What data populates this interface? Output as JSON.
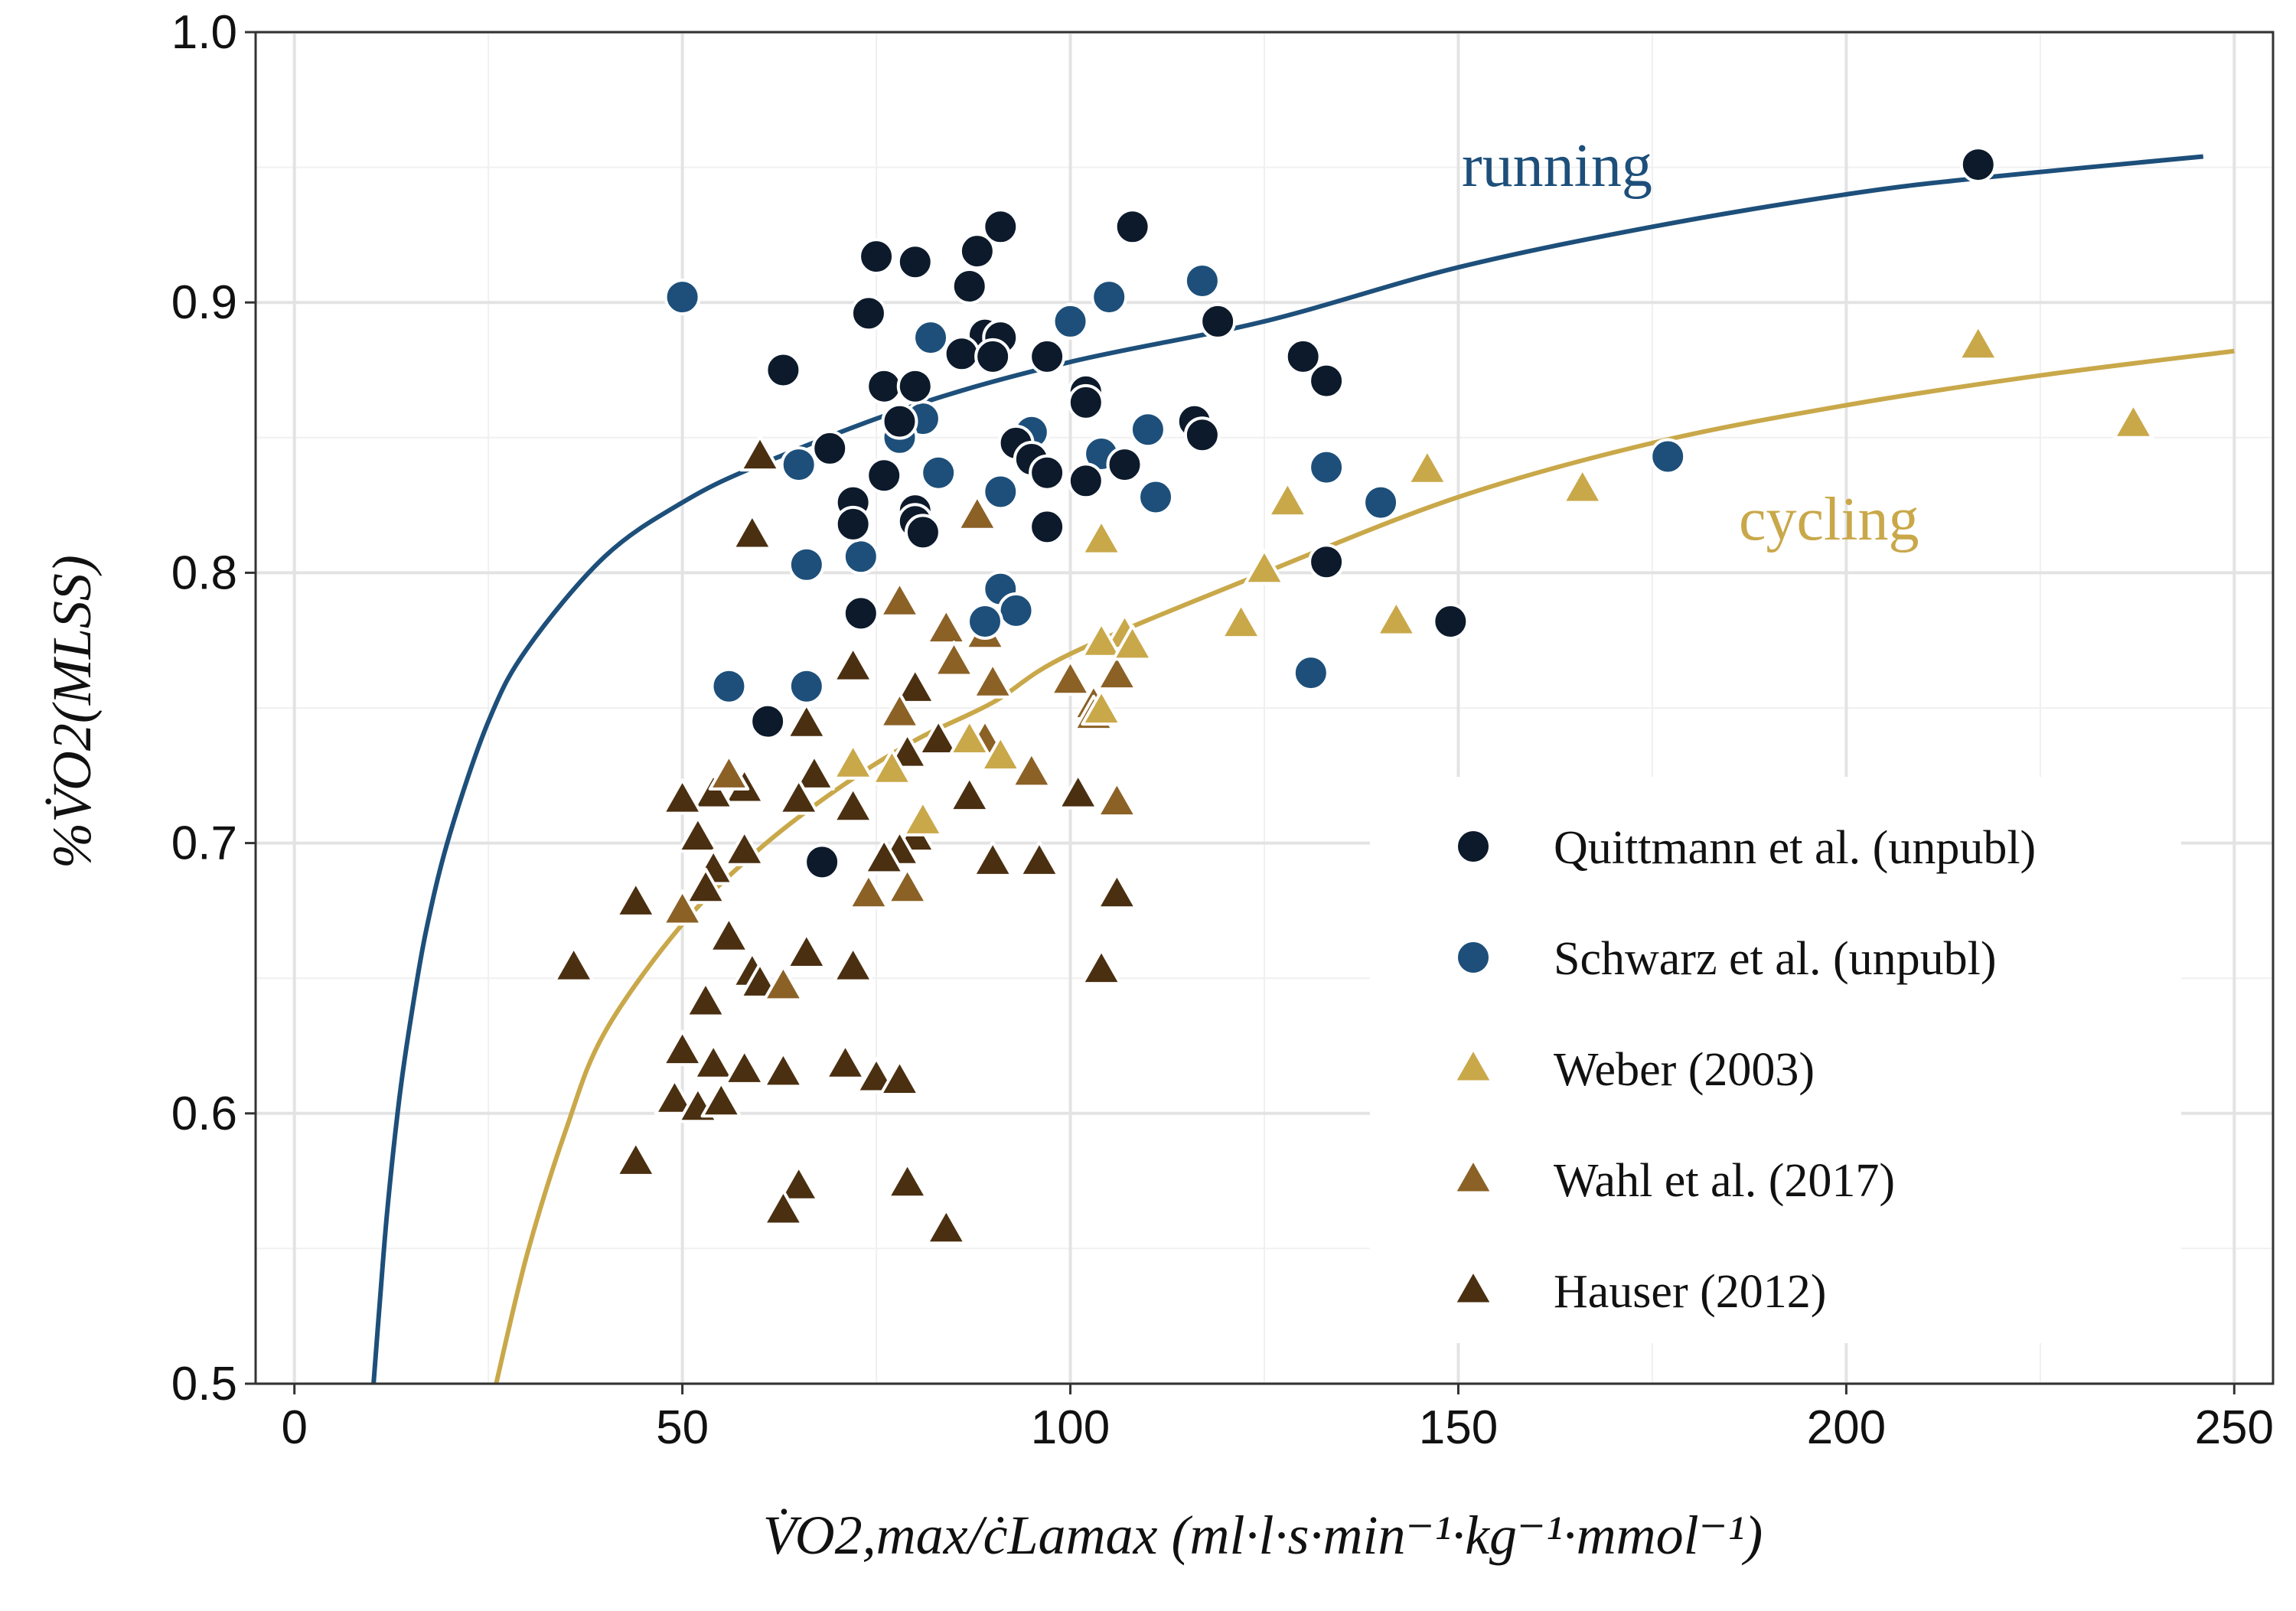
{
  "chart_data": {
    "type": "scatter",
    "title": "",
    "xlabel": "V̇O2,max/ċLamax (ml·l·s·min⁻¹·kg⁻¹·mmol⁻¹)",
    "ylabel": "%V̇O2(MLSS)",
    "xlim": [
      -5,
      255
    ],
    "ylim": [
      0.5,
      1.0
    ],
    "x_ticks": [
      0,
      50,
      100,
      150,
      200,
      250
    ],
    "y_ticks": [
      0.5,
      0.6,
      0.7,
      0.8,
      0.9,
      1.0
    ],
    "x_tick_labels": [
      "0",
      "50",
      "100",
      "150",
      "200",
      "250"
    ],
    "y_tick_labels": [
      "0.5",
      "0.6",
      "0.7",
      "0.8",
      "0.9",
      "1.0"
    ],
    "grid": true,
    "legend_position": "bottom-right",
    "series": [
      {
        "name": "Quittmann et al. (unpubl)",
        "marker": "circle",
        "color": "#0c1a2b",
        "points": [
          [
            217,
            0.951
          ],
          [
            91,
            0.928
          ],
          [
            108,
            0.928
          ],
          [
            75,
            0.917
          ],
          [
            80,
            0.915
          ],
          [
            88,
            0.919
          ],
          [
            74,
            0.896
          ],
          [
            87,
            0.906
          ],
          [
            119,
            0.893
          ],
          [
            63,
            0.875
          ],
          [
            89,
            0.888
          ],
          [
            91,
            0.887
          ],
          [
            86,
            0.881
          ],
          [
            90,
            0.88
          ],
          [
            97,
            0.88
          ],
          [
            130,
            0.88
          ],
          [
            133,
            0.871
          ],
          [
            76,
            0.869
          ],
          [
            80,
            0.869
          ],
          [
            102,
            0.867
          ],
          [
            102,
            0.863
          ],
          [
            78,
            0.856
          ],
          [
            116,
            0.856
          ],
          [
            117,
            0.851
          ],
          [
            69,
            0.846
          ],
          [
            93,
            0.848
          ],
          [
            95,
            0.842
          ],
          [
            97,
            0.837
          ],
          [
            102,
            0.834
          ],
          [
            107,
            0.84
          ],
          [
            76,
            0.836
          ],
          [
            72,
            0.826
          ],
          [
            80,
            0.823
          ],
          [
            80,
            0.819
          ],
          [
            72,
            0.818
          ],
          [
            81,
            0.815
          ],
          [
            97,
            0.817
          ],
          [
            133,
            0.804
          ],
          [
            73,
            0.785
          ],
          [
            149,
            0.782
          ],
          [
            61,
            0.745
          ],
          [
            68,
            0.693
          ]
        ]
      },
      {
        "name": "Schwarz et al. (unpubl)",
        "marker": "circle",
        "color": "#1d4f7a",
        "points": [
          [
            50,
            0.902
          ],
          [
            105,
            0.902
          ],
          [
            117,
            0.908
          ],
          [
            100,
            0.893
          ],
          [
            82,
            0.887
          ],
          [
            81,
            0.857
          ],
          [
            78,
            0.85
          ],
          [
            95,
            0.852
          ],
          [
            110,
            0.853
          ],
          [
            104,
            0.844
          ],
          [
            65,
            0.84
          ],
          [
            83,
            0.837
          ],
          [
            133,
            0.839
          ],
          [
            91,
            0.83
          ],
          [
            111,
            0.828
          ],
          [
            140,
            0.826
          ],
          [
            73,
            0.806
          ],
          [
            66,
            0.803
          ],
          [
            91,
            0.794
          ],
          [
            93,
            0.786
          ],
          [
            89,
            0.782
          ],
          [
            177,
            0.843
          ],
          [
            131,
            0.763
          ],
          [
            56,
            0.758
          ],
          [
            66,
            0.758
          ]
        ]
      },
      {
        "name": "Weber (2003)",
        "marker": "triangle",
        "color": "#c9a84a",
        "points": [
          [
            217,
            0.884
          ],
          [
            237,
            0.855
          ],
          [
            146,
            0.838
          ],
          [
            166,
            0.831
          ],
          [
            128,
            0.826
          ],
          [
            125,
            0.801
          ],
          [
            104,
            0.812
          ],
          [
            122,
            0.781
          ],
          [
            142,
            0.782
          ],
          [
            107,
            0.777
          ],
          [
            104,
            0.774
          ],
          [
            108,
            0.773
          ],
          [
            104,
            0.749
          ],
          [
            87,
            0.738
          ],
          [
            91,
            0.732
          ],
          [
            72,
            0.729
          ],
          [
            81,
            0.708
          ],
          [
            77,
            0.727
          ]
        ]
      },
      {
        "name": "Wahl et al. (2017)",
        "marker": "triangle",
        "color": "#8b6126",
        "points": [
          [
            88,
            0.821
          ],
          [
            78,
            0.789
          ],
          [
            84,
            0.779
          ],
          [
            89,
            0.777
          ],
          [
            85,
            0.767
          ],
          [
            90,
            0.759
          ],
          [
            100,
            0.76
          ],
          [
            106,
            0.762
          ],
          [
            103,
            0.751
          ],
          [
            103,
            0.747
          ],
          [
            78,
            0.748
          ],
          [
            89,
            0.738
          ],
          [
            95,
            0.726
          ],
          [
            106,
            0.715
          ],
          [
            56,
            0.725
          ],
          [
            50,
            0.675
          ],
          [
            79,
            0.683
          ],
          [
            63,
            0.647
          ],
          [
            74,
            0.681
          ]
        ]
      },
      {
        "name": "Hauser (2012)",
        "marker": "triangle",
        "color": "#4a2f10",
        "points": [
          [
            60,
            0.843
          ],
          [
            59,
            0.814
          ],
          [
            72,
            0.765
          ],
          [
            80,
            0.757
          ],
          [
            66,
            0.744
          ],
          [
            83,
            0.738
          ],
          [
            79,
            0.733
          ],
          [
            87,
            0.717
          ],
          [
            101,
            0.718
          ],
          [
            67,
            0.725
          ],
          [
            58,
            0.72
          ],
          [
            54,
            0.718
          ],
          [
            50,
            0.716
          ],
          [
            65,
            0.716
          ],
          [
            72,
            0.713
          ],
          [
            52,
            0.702
          ],
          [
            58,
            0.697
          ],
          [
            80,
            0.702
          ],
          [
            78,
            0.697
          ],
          [
            76,
            0.694
          ],
          [
            90,
            0.693
          ],
          [
            96,
            0.693
          ],
          [
            54,
            0.69
          ],
          [
            53,
            0.683
          ],
          [
            106,
            0.681
          ],
          [
            44,
            0.678
          ],
          [
            56,
            0.665
          ],
          [
            66,
            0.659
          ],
          [
            59,
            0.652
          ],
          [
            60,
            0.648
          ],
          [
            72,
            0.654
          ],
          [
            104,
            0.653
          ],
          [
            36,
            0.654
          ],
          [
            53,
            0.641
          ],
          [
            50,
            0.623
          ],
          [
            54,
            0.618
          ],
          [
            58,
            0.616
          ],
          [
            63,
            0.615
          ],
          [
            71,
            0.618
          ],
          [
            75,
            0.613
          ],
          [
            78,
            0.612
          ],
          [
            49,
            0.605
          ],
          [
            52,
            0.602
          ],
          [
            55,
            0.604
          ],
          [
            44,
            0.582
          ],
          [
            65,
            0.573
          ],
          [
            79,
            0.574
          ],
          [
            63,
            0.564
          ],
          [
            84,
            0.557
          ]
        ]
      }
    ],
    "curves": [
      {
        "label": "running",
        "color": "#1d4f7a",
        "x_range": [
          10.2,
          246
        ],
        "points": [
          [
            10.2,
            0.5
          ],
          [
            11,
            0.53
          ],
          [
            12,
            0.565
          ],
          [
            13.5,
            0.605
          ],
          [
            15,
            0.635
          ],
          [
            17,
            0.668
          ],
          [
            20,
            0.703
          ],
          [
            25,
            0.745
          ],
          [
            30,
            0.772
          ],
          [
            40,
            0.806
          ],
          [
            50,
            0.826
          ],
          [
            60,
            0.84
          ],
          [
            80,
            0.862
          ],
          [
            100,
            0.878
          ],
          [
            125,
            0.893
          ],
          [
            150,
            0.913
          ],
          [
            175,
            0.928
          ],
          [
            200,
            0.94
          ],
          [
            217,
            0.946
          ],
          [
            246,
            0.954
          ]
        ]
      },
      {
        "label": "cycling",
        "color": "#c9a84a",
        "x_range": [
          26,
          250
        ],
        "points": [
          [
            26,
            0.5
          ],
          [
            30,
            0.548
          ],
          [
            35,
            0.594
          ],
          [
            40,
            0.63
          ],
          [
            50,
            0.67
          ],
          [
            60,
            0.698
          ],
          [
            70,
            0.72
          ],
          [
            80,
            0.738
          ],
          [
            90,
            0.752
          ],
          [
            100,
            0.77
          ],
          [
            125,
            0.8
          ],
          [
            150,
            0.828
          ],
          [
            175,
            0.848
          ],
          [
            200,
            0.862
          ],
          [
            225,
            0.873
          ],
          [
            250,
            0.882
          ]
        ]
      }
    ]
  },
  "labels": {
    "running": "running",
    "cycling": "cycling"
  },
  "legend": {
    "items": [
      {
        "label": "Quittmann et al. (unpubl)",
        "marker": "circle",
        "color": "#0c1a2b"
      },
      {
        "label": "Schwarz et al. (unpubl)",
        "marker": "circle",
        "color": "#1d4f7a"
      },
      {
        "label": "Weber (2003)",
        "marker": "triangle",
        "color": "#c9a84a"
      },
      {
        "label": "Wahl et al. (2017)",
        "marker": "triangle",
        "color": "#8b6126"
      },
      {
        "label": "Hauser (2012)",
        "marker": "triangle",
        "color": "#4a2f10"
      }
    ]
  }
}
